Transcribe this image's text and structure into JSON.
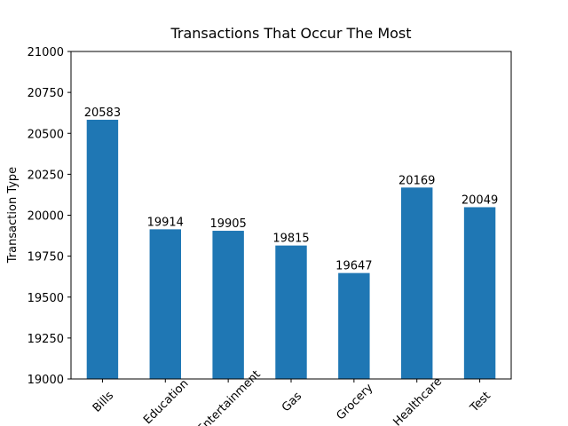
{
  "chart_data": {
    "type": "bar",
    "title": "Transactions That Occur The Most",
    "y_label": "Transaction Type",
    "categories": [
      "Bills",
      "Education",
      "Entertainment",
      "Gas",
      "Grocery",
      "Healthcare",
      "Test"
    ],
    "values": [
      20583,
      19914,
      19905,
      19815,
      19647,
      20169,
      20049
    ],
    "color": "#1f77b4",
    "ylim": [
      19000,
      21000
    ],
    "yticks": [
      19000,
      19250,
      19500,
      19750,
      20000,
      20250,
      20500,
      20750,
      21000
    ]
  }
}
